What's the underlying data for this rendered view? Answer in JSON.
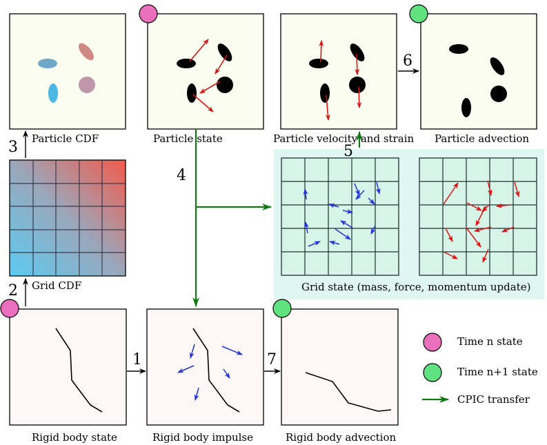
{
  "colors": {
    "particle_bg": "#fbfdf0",
    "rigid_bg": "#fdf7f8",
    "grid_panel_bg": "#dff6f3",
    "grid_cell_bg": "#d7f4e9",
    "cyan_start": "#5ccbf2",
    "red_end": "#f35a4a",
    "time_n": "#ea6fbd",
    "time_n1": "#5fe27f",
    "cpic_arrow": "#107810",
    "velocity_red": "#dd1111",
    "impulse_blue": "#2233dd"
  },
  "labels": {
    "particle_cdf": "Particle CDF",
    "particle_state": "Particle state",
    "particle_velocity": "Particle velocity and strain",
    "particle_advection": "Particle advection",
    "grid_cdf": "Grid CDF",
    "grid_state": "Grid state (mass, force, momentum update)",
    "rigid_state": "Rigid body state",
    "rigid_impulse": "Rigid body impulse",
    "rigid_advection": "Rigid body advection"
  },
  "steps": [
    "1",
    "2",
    "3",
    "4",
    "5",
    "6",
    "7"
  ],
  "legend": {
    "time_n": "Time n state",
    "time_n1": "Time n+1 state",
    "cpic": "CPIC transfer"
  }
}
